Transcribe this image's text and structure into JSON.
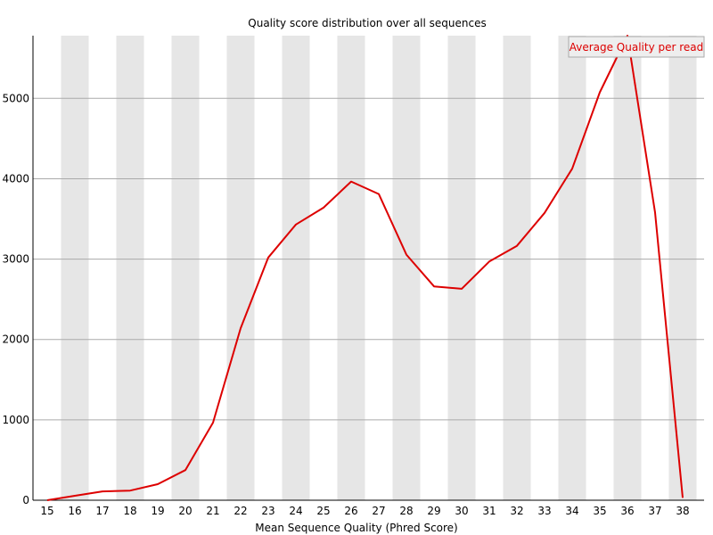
{
  "chart_data": {
    "type": "line",
    "title": "Quality score distribution over all sequences",
    "xlabel": "Mean Sequence Quality (Phred Score)",
    "ylabel": "",
    "x": [
      15,
      16,
      17,
      18,
      19,
      20,
      21,
      22,
      23,
      24,
      25,
      26,
      27,
      28,
      29,
      30,
      31,
      32,
      33,
      34,
      35,
      36,
      37,
      38
    ],
    "x_tick_labels": [
      "15",
      "16",
      "17",
      "18",
      "19",
      "20",
      "21",
      "22",
      "23",
      "24",
      "25",
      "26",
      "27",
      "28",
      "29",
      "30",
      "31",
      "32",
      "33",
      "34",
      "35",
      "36",
      "37",
      "38"
    ],
    "y_ticks": [
      0,
      1000,
      2000,
      3000,
      4000,
      5000
    ],
    "y_tick_labels": [
      "0",
      "1000",
      "2000",
      "3000",
      "4000",
      "5000"
    ],
    "ylim": [
      0,
      5780
    ],
    "series": [
      {
        "name": "Average Quality per read",
        "color": "#dd0000",
        "values": [
          0,
          55,
          110,
          120,
          200,
          375,
          965,
          2140,
          3020,
          3430,
          3640,
          3965,
          3810,
          3055,
          2660,
          2630,
          2970,
          3165,
          3575,
          4125,
          5075,
          5780,
          3580,
          30
        ]
      }
    ],
    "grid": true,
    "alternating_bands": true,
    "band_color": "#e6e6e6",
    "gridline_color": "#aaaaaa",
    "legend_position": "top-right"
  }
}
